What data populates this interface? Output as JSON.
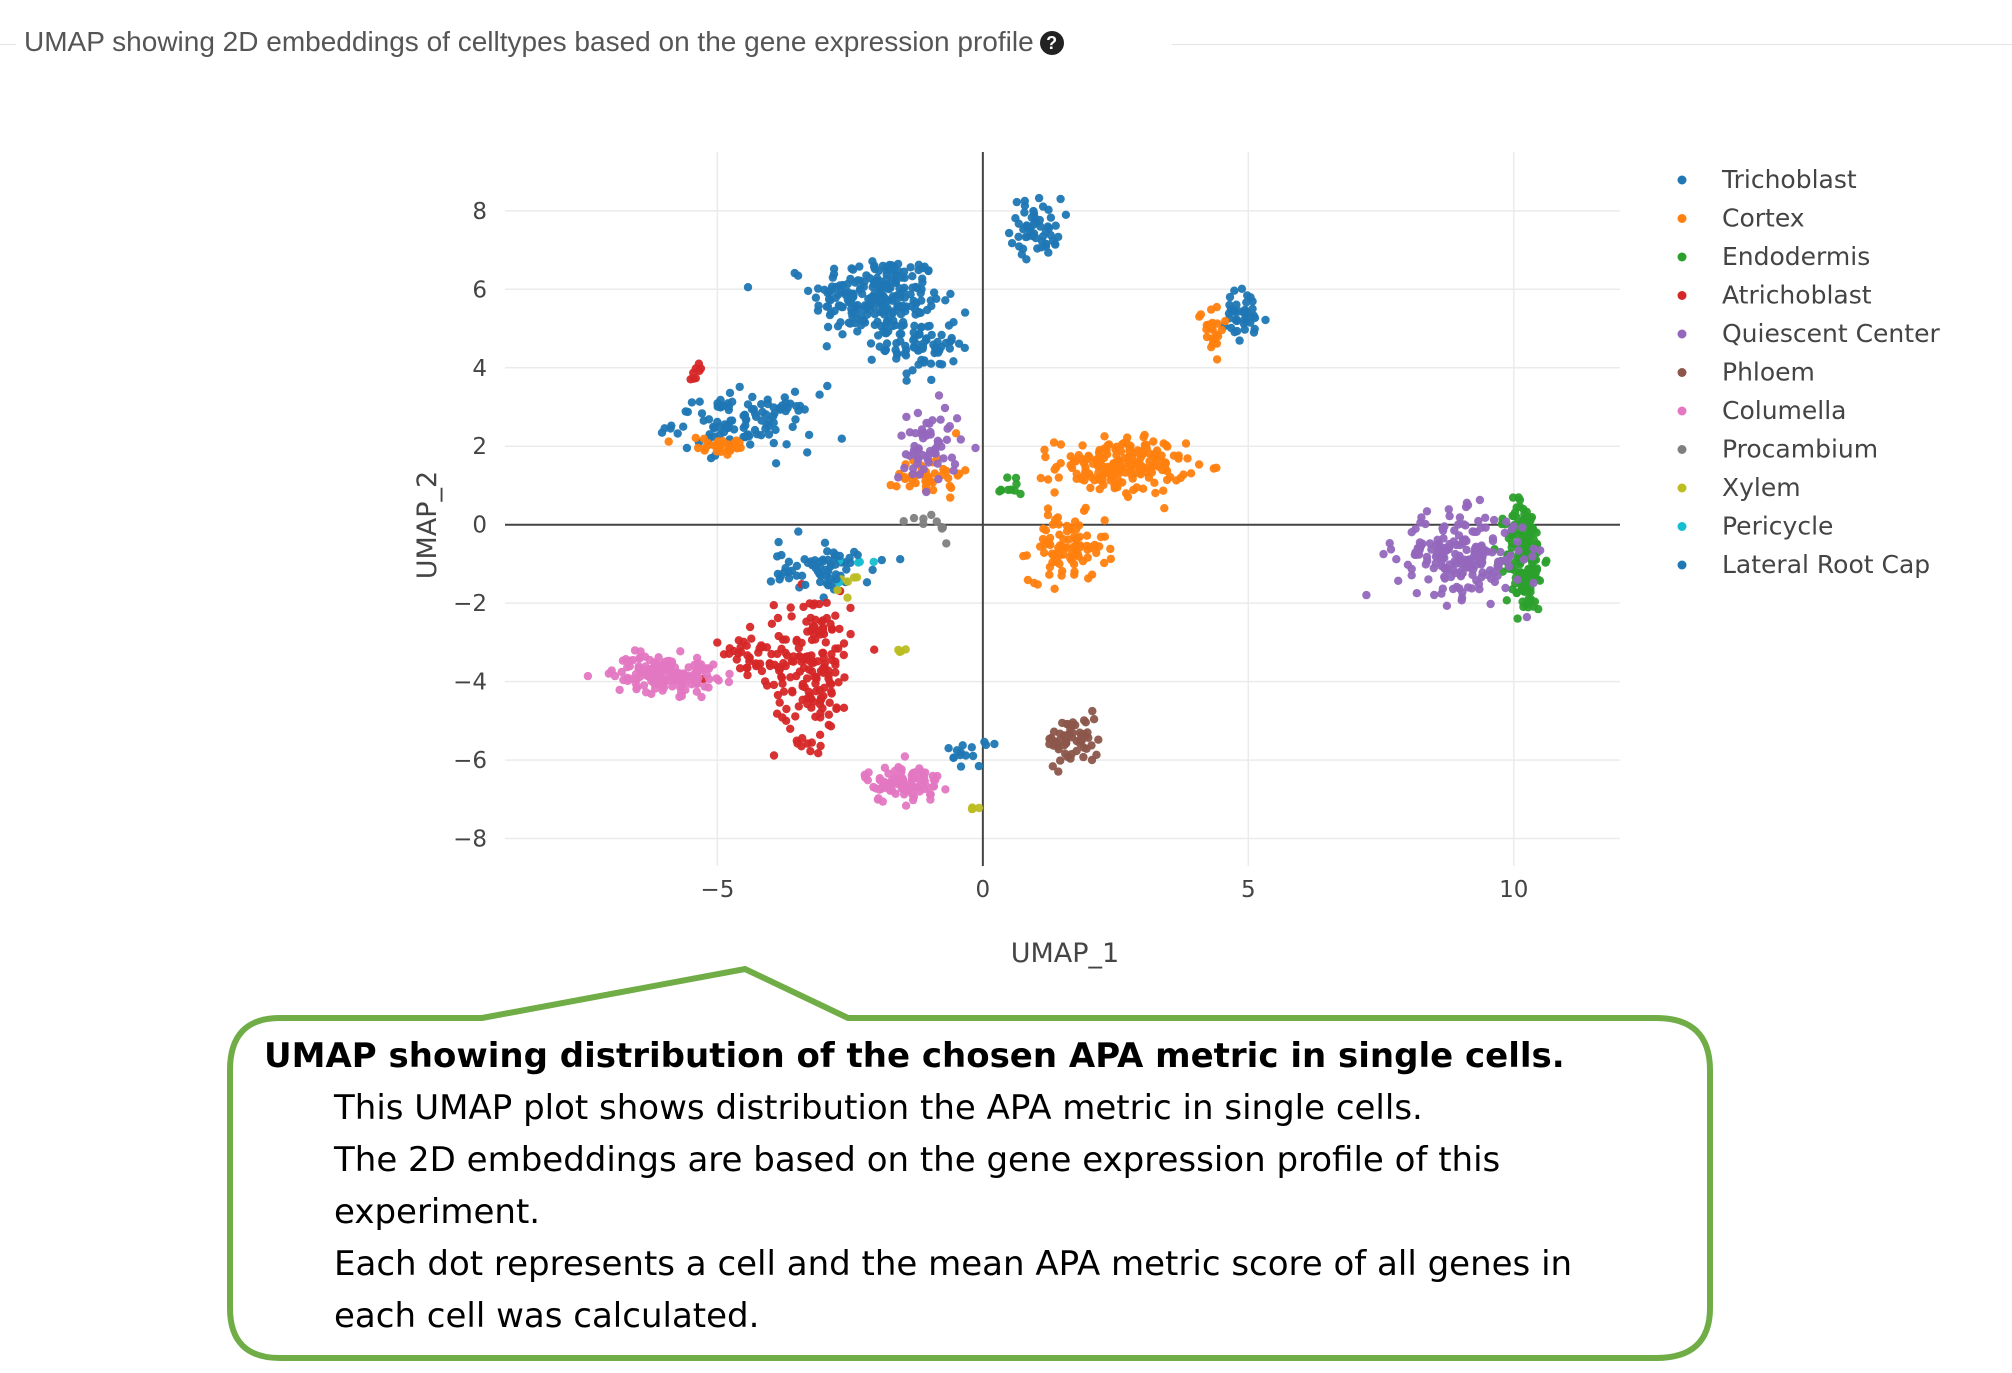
{
  "header": {
    "title": "UMAP showing 2D embeddings of celltypes based on the gene expression profile",
    "help_icon": "question-circle-icon"
  },
  "chart_data": {
    "type": "scatter",
    "title": "",
    "xlabel": "UMAP_1",
    "ylabel": "UMAP_2",
    "xlim": [
      -9,
      12
    ],
    "ylim": [
      -8.7,
      9.5
    ],
    "xticks": [
      -5,
      0,
      5,
      10
    ],
    "xtick_labels": [
      "−5",
      "0",
      "5",
      "10"
    ],
    "yticks": [
      -8,
      -6,
      -4,
      -2,
      0,
      2,
      4,
      6,
      8
    ],
    "ytick_labels": [
      "−8",
      "−6",
      "−4",
      "−2",
      "0",
      "2",
      "4",
      "6",
      "8"
    ],
    "grid": true,
    "legend_position": "right",
    "series": [
      {
        "name": "Trichoblast",
        "color": "#1f77b4",
        "clusters": [
          [
            -2.0,
            5.8,
            1.0,
            0.9,
            220
          ],
          [
            -1.2,
            4.6,
            0.6,
            0.8,
            80
          ],
          [
            1.0,
            7.6,
            0.4,
            0.6,
            55
          ],
          [
            -4.5,
            2.6,
            1.1,
            0.6,
            110
          ],
          [
            4.9,
            5.3,
            0.4,
            0.6,
            40
          ],
          [
            -3.0,
            -1.2,
            0.8,
            0.4,
            40
          ]
        ]
      },
      {
        "name": "Cortex",
        "color": "#ff7f0e",
        "clusters": [
          [
            2.6,
            1.5,
            1.0,
            0.6,
            180
          ],
          [
            1.6,
            -0.6,
            0.6,
            0.7,
            90
          ],
          [
            -5.0,
            2.0,
            0.6,
            0.2,
            30
          ],
          [
            4.3,
            5.0,
            0.2,
            0.5,
            25
          ],
          [
            -1.0,
            1.3,
            0.5,
            0.5,
            40
          ]
        ]
      },
      {
        "name": "Endodermis",
        "color": "#2ca02c",
        "clusters": [
          [
            10.2,
            -0.8,
            0.3,
            1.2,
            170
          ],
          [
            0.5,
            1.0,
            0.3,
            0.3,
            10
          ]
        ]
      },
      {
        "name": "Atrichoblast",
        "color": "#d62728",
        "clusters": [
          [
            -3.2,
            -3.6,
            0.6,
            1.6,
            170
          ],
          [
            -4.3,
            -3.3,
            0.5,
            0.5,
            40
          ],
          [
            -5.4,
            4.0,
            0.1,
            0.2,
            8
          ]
        ]
      },
      {
        "name": "Quiescent Center",
        "color": "#9467bd",
        "clusters": [
          [
            9.0,
            -0.8,
            1.0,
            0.9,
            200
          ],
          [
            -1.0,
            2.0,
            0.5,
            0.9,
            60
          ]
        ]
      },
      {
        "name": "Phloem",
        "color": "#8c564b",
        "clusters": [
          [
            1.7,
            -5.5,
            0.4,
            0.5,
            60
          ]
        ]
      },
      {
        "name": "Columella",
        "color": "#e377c2",
        "clusters": [
          [
            -6.0,
            -3.8,
            0.8,
            0.4,
            150
          ],
          [
            -1.5,
            -6.6,
            0.6,
            0.4,
            90
          ]
        ]
      },
      {
        "name": "Procambium",
        "color": "#7f7f7f",
        "clusters": [
          [
            -1.0,
            0.0,
            0.4,
            0.3,
            10
          ]
        ]
      },
      {
        "name": "Xylem",
        "color": "#bcbd22",
        "clusters": [
          [
            -1.5,
            -3.2,
            0.1,
            0.1,
            4
          ],
          [
            -0.1,
            -7.2,
            0.1,
            0.1,
            4
          ],
          [
            -2.5,
            -1.5,
            0.3,
            0.3,
            6
          ]
        ]
      },
      {
        "name": "Pericycle",
        "color": "#17becf",
        "clusters": [
          [
            -2.5,
            -1.0,
            0.3,
            0.3,
            5
          ]
        ]
      },
      {
        "name": "Lateral Root Cap",
        "color": "#1f77b4",
        "clusters": [
          [
            -3.0,
            -1.0,
            0.7,
            0.5,
            30
          ],
          [
            -0.3,
            -5.8,
            0.3,
            0.3,
            15
          ]
        ]
      }
    ]
  },
  "callout": {
    "heading": "UMAP showing distribution of the chosen APA metric in single cells.",
    "lines": [
      "This UMAP plot shows distribution the APA metric in single cells.",
      "The 2D embeddings are based on the gene expression profile of this",
      "experiment.",
      "Each dot represents a cell and the mean APA metric score of all genes in",
      "each cell was calculated."
    ],
    "border_color": "#70ad47"
  }
}
